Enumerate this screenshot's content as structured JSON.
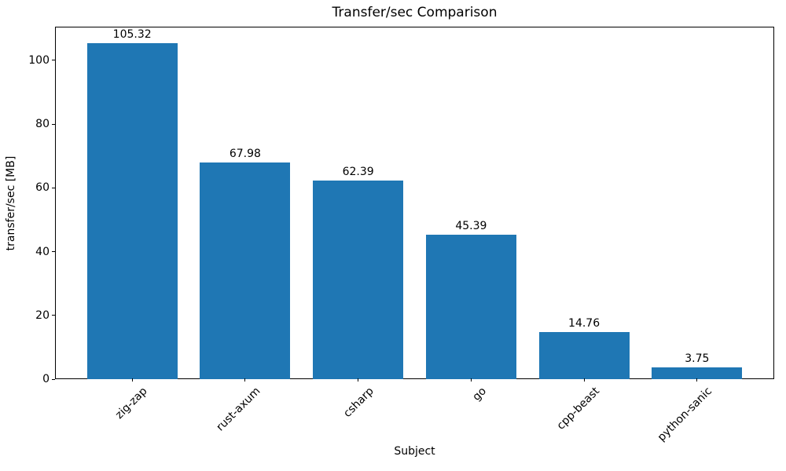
{
  "chart_data": {
    "type": "bar",
    "title": "Transfer/sec Comparison",
    "xlabel": "Subject",
    "ylabel": "transfer/sec [MB]",
    "categories": [
      "zig-zap",
      "rust-axum",
      "csharp",
      "go",
      "cpp-beast",
      "python-sanic"
    ],
    "values": [
      105.32,
      67.98,
      62.39,
      45.39,
      14.76,
      3.75
    ],
    "value_labels": [
      "105.32",
      "67.98",
      "62.39",
      "45.39",
      "14.76",
      "3.75"
    ],
    "yticks": [
      0,
      20,
      40,
      60,
      80,
      100
    ],
    "ylim": [
      0,
      110.59
    ],
    "xlabel_rotation_deg": 45,
    "bar_color": "#1f77b4",
    "grid": false,
    "legend": null,
    "background_color": "#ffffff",
    "spine_color": "#000000"
  }
}
